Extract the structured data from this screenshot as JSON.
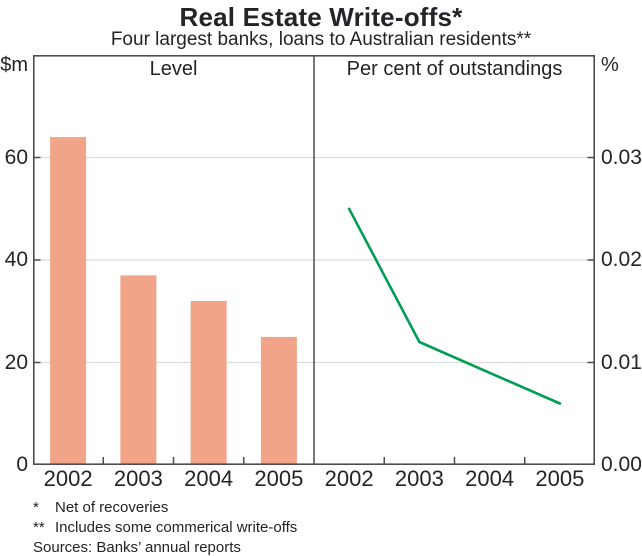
{
  "header": {
    "title": "Real Estate Write-offs*",
    "subtitle": "Four largest banks, loans to Australian residents**"
  },
  "colors": {
    "bar": "#F2A489",
    "line": "#009E53",
    "frame": "#4d4d4f",
    "grid": "#d9dcde",
    "text": "#232427"
  },
  "chart_data": [
    {
      "type": "bar",
      "panel": "left",
      "title": "Level",
      "ylabel": "$m",
      "categories": [
        "2002",
        "2003",
        "2004",
        "2005"
      ],
      "values": [
        64,
        37,
        32,
        25
      ],
      "ylim": [
        0,
        80
      ],
      "yticks": [
        0,
        20,
        40,
        60
      ],
      "ytick_labels": [
        "0",
        "20",
        "40",
        "60"
      ],
      "grid": true,
      "legend": "none"
    },
    {
      "type": "line",
      "panel": "right",
      "title": "Per cent of outstandings",
      "ylabel": "%",
      "categories": [
        "2002",
        "2003",
        "2004",
        "2005"
      ],
      "values": [
        0.025,
        0.012,
        0.009,
        0.006
      ],
      "ylim": [
        0,
        0.04
      ],
      "yticks": [
        0,
        0.01,
        0.02,
        0.03
      ],
      "ytick_labels": [
        "0.00",
        "0.01",
        "0.02",
        "0.03"
      ],
      "grid": true,
      "legend": "none"
    }
  ],
  "footnotes": [
    {
      "marker": "*",
      "text": "Net of recoveries"
    },
    {
      "marker": "**",
      "text": "Includes some commerical write-offs"
    },
    {
      "marker": "",
      "text": "Sources: Banks’ annual reports"
    }
  ]
}
